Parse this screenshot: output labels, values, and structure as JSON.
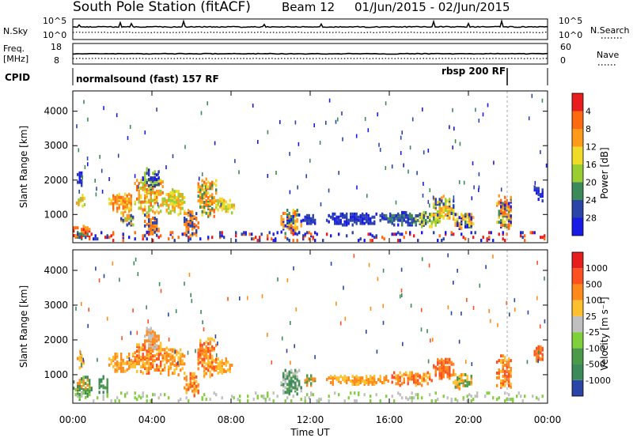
{
  "chart_data": {
    "type": "heatmap",
    "title": {
      "station": "South Pole Station (fitACF)",
      "beam": "Beam 12",
      "dates": "01/Jun/2015 - 02/Jun/2015"
    },
    "xlabel": "Time UT",
    "x_ticks": [
      "00:00",
      "04:00",
      "08:00",
      "12:00",
      "16:00",
      "20:00",
      "00:00"
    ],
    "xlim_hours": [
      0,
      24
    ],
    "top_panels": {
      "noise": {
        "left_label": "N.Sky",
        "right_label": "N.Search",
        "left_ticks": [
          "10^5",
          "10^0"
        ],
        "right_ticks": [
          "10^5",
          "10^0"
        ]
      },
      "freq": {
        "left_label_1": "Freq.",
        "left_label_2": "[MHz]",
        "right_label": "Nave",
        "left_ticks": [
          "18",
          "8"
        ],
        "right_ticks": [
          "60",
          "0"
        ]
      },
      "cpid": {
        "label": "CPID",
        "programs": [
          {
            "name": "normalsound (fast) 157 RF",
            "start_hour": 0.0
          },
          {
            "name": "rbsp 200 RF",
            "start_hour": 21.9
          }
        ]
      }
    },
    "panels": [
      {
        "name": "power",
        "ylabel": "Slant Range [km]",
        "yticks": [
          1000,
          2000,
          3000,
          4000
        ],
        "ylim": [
          180,
          4590
        ],
        "colorbar": {
          "title": "Power [dB]",
          "labels": [
            "4",
            "8",
            "12",
            "16",
            "20",
            "24",
            "28"
          ],
          "colors": [
            "#1a1ae6",
            "#2a44a8",
            "#3c8a5a",
            "#9acd32",
            "#f0dc28",
            "#ff9a1a",
            "#ff6a10",
            "#e81e1e"
          ]
        },
        "blobs": [
          {
            "t0": 0.15,
            "t1": 0.55,
            "r0": 1150,
            "r1": 1550,
            "levels": [
              3,
              4,
              5
            ]
          },
          {
            "t0": 0.2,
            "t1": 0.45,
            "r0": 1800,
            "r1": 2200,
            "levels": [
              0,
              1
            ]
          },
          {
            "t0": 0.0,
            "t1": 0.8,
            "r0": 250,
            "r1": 650,
            "levels": [
              2,
              5,
              6,
              7
            ]
          },
          {
            "t0": 1.8,
            "t1": 3.0,
            "r0": 1000,
            "r1": 1550,
            "levels": [
              4,
              5,
              6
            ]
          },
          {
            "t0": 2.4,
            "t1": 3.1,
            "r0": 650,
            "r1": 1000,
            "levels": [
              1,
              3,
              5
            ]
          },
          {
            "t0": 3.1,
            "t1": 4.6,
            "r0": 1000,
            "r1": 1950,
            "levels": [
              3,
              4,
              5,
              6
            ]
          },
          {
            "t0": 3.5,
            "t1": 4.3,
            "r0": 1700,
            "r1": 2300,
            "levels": [
              0,
              1,
              3
            ]
          },
          {
            "t0": 3.6,
            "t1": 4.3,
            "r0": 350,
            "r1": 1000,
            "levels": [
              1,
              5,
              6
            ]
          },
          {
            "t0": 4.6,
            "t1": 5.6,
            "r0": 950,
            "r1": 1700,
            "levels": [
              3,
              4,
              5
            ]
          },
          {
            "t0": 5.6,
            "t1": 6.3,
            "r0": 350,
            "r1": 1100,
            "levels": [
              1,
              5,
              6
            ]
          },
          {
            "t0": 6.3,
            "t1": 7.2,
            "r0": 900,
            "r1": 2000,
            "levels": [
              2,
              4,
              5,
              6
            ]
          },
          {
            "t0": 7.1,
            "t1": 8.1,
            "r0": 1000,
            "r1": 1450,
            "levels": [
              3,
              4,
              5
            ]
          },
          {
            "t0": 10.5,
            "t1": 11.5,
            "r0": 400,
            "r1": 1100,
            "levels": [
              0,
              2,
              4,
              5,
              6
            ]
          },
          {
            "t0": 11.6,
            "t1": 12.2,
            "r0": 650,
            "r1": 950,
            "levels": [
              0,
              1
            ]
          },
          {
            "t0": 12.8,
            "t1": 15.5,
            "r0": 650,
            "r1": 1000,
            "levels": [
              0,
              1
            ]
          },
          {
            "t0": 15.5,
            "t1": 17.8,
            "r0": 650,
            "r1": 1050,
            "levels": [
              0,
              1,
              2
            ]
          },
          {
            "t0": 17.3,
            "t1": 18.6,
            "r0": 600,
            "r1": 1050,
            "levels": [
              1,
              2,
              3,
              4
            ]
          },
          {
            "t0": 18.2,
            "t1": 19.3,
            "r0": 850,
            "r1": 1500,
            "levels": [
              1,
              3,
              4,
              5
            ]
          },
          {
            "t0": 19.2,
            "t1": 20.3,
            "r0": 550,
            "r1": 1000,
            "levels": [
              0,
              2,
              4,
              5
            ]
          },
          {
            "t0": 21.4,
            "t1": 22.2,
            "r0": 550,
            "r1": 1500,
            "levels": [
              0,
              2,
              4,
              5,
              6
            ]
          },
          {
            "t0": 23.3,
            "t1": 23.8,
            "r0": 1350,
            "r1": 1800,
            "levels": [
              0,
              1
            ]
          },
          {
            "t0": 0.0,
            "t1": 24.0,
            "r0": 200,
            "r1": 450,
            "levels": [
              0,
              7,
              6,
              1
            ]
          }
        ]
      },
      {
        "name": "velocity",
        "ylabel": "Slant Range [km]",
        "yticks": [
          1000,
          2000,
          3000,
          4000
        ],
        "ylim": [
          180,
          4590
        ],
        "colorbar": {
          "title": "Velocity [m s⁻¹]",
          "labels": [
            "1000",
            "500",
            "100",
            "25",
            "-25",
            "-100",
            "-500",
            "-1000"
          ],
          "colors": [
            "#2a44a8",
            "#3c8a5a",
            "#4a9a4a",
            "#7fd03a",
            "#c0c0c0",
            "#ffc030",
            "#ff8a1a",
            "#ff5020",
            "#e81e1e"
          ]
        },
        "blobs": [
          {
            "t0": 0.2,
            "t1": 0.6,
            "r0": 1150,
            "r1": 1550,
            "levels": [
              6,
              5
            ]
          },
          {
            "t0": 0.0,
            "t1": 0.9,
            "r0": 250,
            "r1": 900,
            "levels": [
              1,
              2,
              3,
              6
            ]
          },
          {
            "t0": 1.3,
            "t1": 1.8,
            "r0": 400,
            "r1": 900,
            "levels": [
              1,
              2
            ]
          },
          {
            "t0": 1.8,
            "t1": 3.1,
            "r0": 1050,
            "r1": 1550,
            "levels": [
              5,
              6
            ]
          },
          {
            "t0": 3.1,
            "t1": 4.7,
            "r0": 1000,
            "r1": 1900,
            "levels": [
              5,
              6,
              7
            ]
          },
          {
            "t0": 3.6,
            "t1": 4.3,
            "r0": 1700,
            "r1": 2300,
            "levels": [
              4,
              6
            ]
          },
          {
            "t0": 4.6,
            "t1": 5.6,
            "r0": 950,
            "r1": 1700,
            "levels": [
              5,
              6
            ]
          },
          {
            "t0": 5.6,
            "t1": 6.3,
            "r0": 350,
            "r1": 1000,
            "levels": [
              5,
              6,
              7
            ]
          },
          {
            "t0": 6.3,
            "t1": 7.2,
            "r0": 900,
            "r1": 2000,
            "levels": [
              5,
              6,
              7
            ]
          },
          {
            "t0": 7.1,
            "t1": 8.0,
            "r0": 1000,
            "r1": 1450,
            "levels": [
              5,
              6
            ]
          },
          {
            "t0": 10.5,
            "t1": 11.5,
            "r0": 400,
            "r1": 1100,
            "levels": [
              1,
              2,
              4
            ]
          },
          {
            "t0": 11.6,
            "t1": 12.2,
            "r0": 650,
            "r1": 950,
            "levels": [
              2,
              6
            ]
          },
          {
            "t0": 12.8,
            "t1": 16.0,
            "r0": 680,
            "r1": 950,
            "levels": [
              5,
              6
            ]
          },
          {
            "t0": 16.0,
            "t1": 18.2,
            "r0": 650,
            "r1": 1050,
            "levels": [
              5,
              6,
              7
            ]
          },
          {
            "t0": 18.2,
            "t1": 19.3,
            "r0": 850,
            "r1": 1400,
            "levels": [
              6,
              7
            ]
          },
          {
            "t0": 19.2,
            "t1": 20.3,
            "r0": 550,
            "r1": 1000,
            "levels": [
              2,
              5,
              6
            ]
          },
          {
            "t0": 21.4,
            "t1": 22.2,
            "r0": 550,
            "r1": 1500,
            "levels": [
              5,
              6,
              7
            ]
          },
          {
            "t0": 23.3,
            "t1": 23.8,
            "r0": 1350,
            "r1": 1800,
            "levels": [
              6,
              7
            ]
          },
          {
            "t0": 0.0,
            "t1": 24.0,
            "r0": 200,
            "r1": 450,
            "levels": [
              4,
              3
            ]
          }
        ]
      }
    ]
  }
}
